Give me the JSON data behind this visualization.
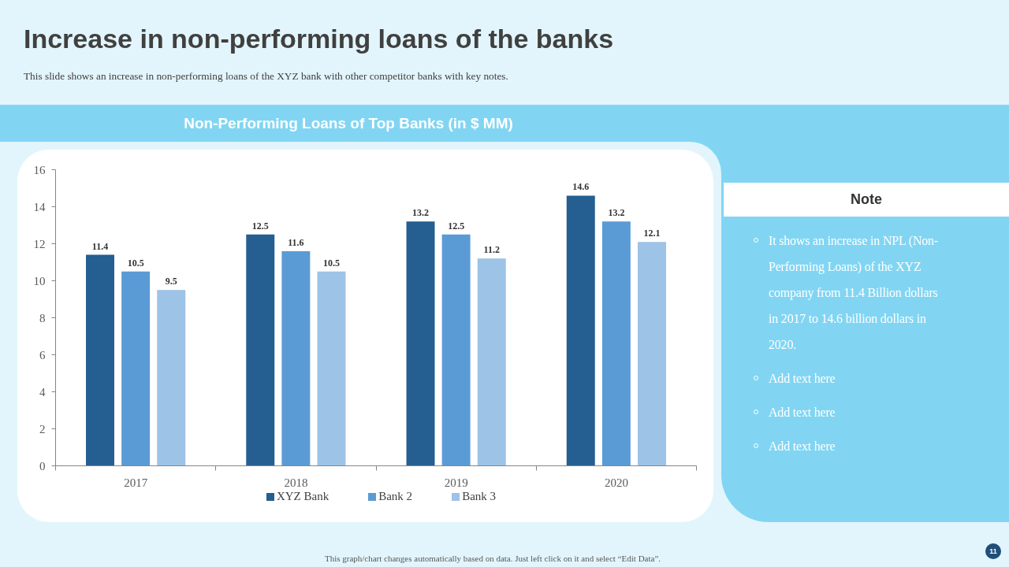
{
  "chart_data": {
    "type": "bar",
    "title": "Increase in non-performing loans of the banks",
    "subtitle": "This slide shows an increase in non-performing loans of the XYZ bank with other competitor banks with key notes.",
    "categories": [
      "2017",
      "2018",
      "2019",
      "2020"
    ],
    "series": [
      {
        "name": "XYZ Bank",
        "color": "#255e91",
        "values": [
          11.4,
          12.5,
          13.2,
          14.6
        ]
      },
      {
        "name": "Bank 2",
        "color": "#5b9bd5",
        "values": [
          10.5,
          11.6,
          12.5,
          13.2
        ]
      },
      {
        "name": "Bank 3",
        "color": "#9dc3e6",
        "values": [
          9.5,
          10.5,
          11.2,
          12.1
        ]
      }
    ],
    "ylim": [
      0,
      16
    ],
    "yticks": [
      0,
      2,
      4,
      6,
      8,
      10,
      12,
      14,
      16
    ],
    "grid": false,
    "legend": "bottom",
    "data_labels": true,
    "annotations": [
      "Non-Performing Loans of Top Banks (in $ MM)",
      "Note",
      "It shows an increase in NPL (Non-Performing Loans) of the XYZ company from 11.4 Billion dollars in 2017 to 14.6 billion dollars in 2020.",
      "Add text here",
      "Add text here",
      "Add text here",
      "This graph/chart changes automatically based on data. Just left click on it and select “Edit Data”.",
      "11"
    ]
  }
}
